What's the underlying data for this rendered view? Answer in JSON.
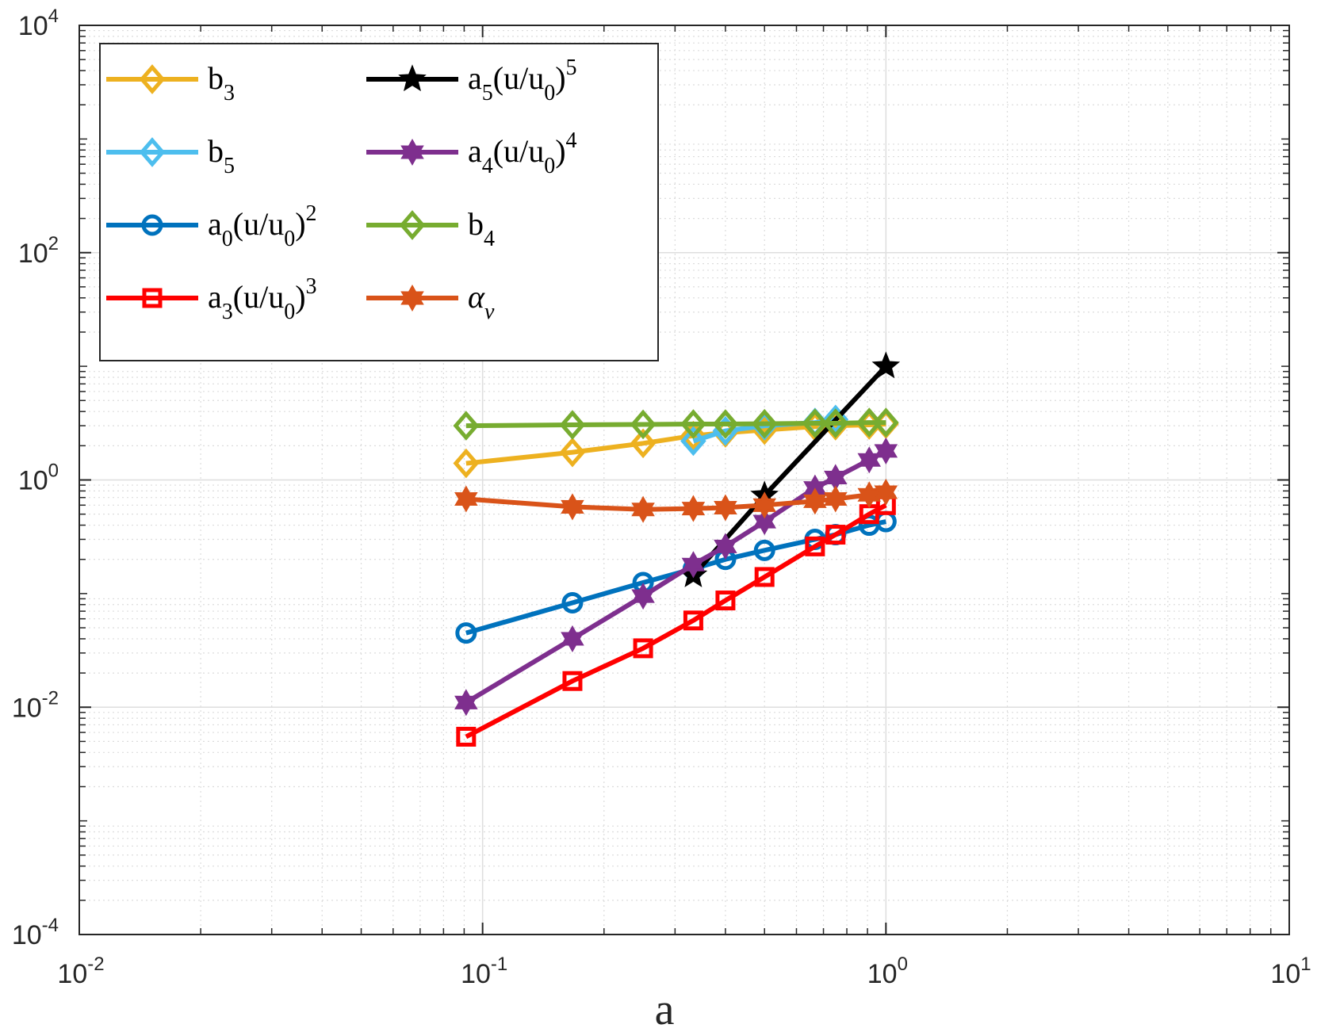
{
  "chart_data": {
    "type": "line",
    "xlabel": "a",
    "ylabel": "",
    "xscale": "log",
    "yscale": "log",
    "xlim": [
      0.01,
      10
    ],
    "ylim": [
      0.0001,
      10000
    ],
    "xticks": [
      {
        "base": "10",
        "exp": "-2"
      },
      {
        "base": "10",
        "exp": "-1"
      },
      {
        "base": "10",
        "exp": "0"
      },
      {
        "base": "10",
        "exp": "1"
      }
    ],
    "yticks": [
      {
        "base": "10",
        "exp": "-4"
      },
      {
        "base": "10",
        "exp": "-2"
      },
      {
        "base": "10",
        "exp": "0"
      },
      {
        "base": "10",
        "exp": "2"
      },
      {
        "base": "10",
        "exp": "4"
      }
    ],
    "grid": true,
    "minor_grid": true,
    "legend_position": "top-left",
    "series": [
      {
        "name": "b3",
        "label_main": "b",
        "label_sub": "3",
        "color": "#EDB120",
        "marker": "diamond",
        "x": [
          0.091,
          0.167,
          0.25,
          0.333,
          0.4,
          0.5,
          0.667,
          0.75,
          0.909,
          1.0
        ],
        "y": [
          1.4,
          1.75,
          2.1,
          2.45,
          2.6,
          2.75,
          2.95,
          3.0,
          3.05,
          3.1
        ]
      },
      {
        "name": "b5",
        "label_main": "b",
        "label_sub": "5",
        "color": "#4DBEEE",
        "marker": "diamond",
        "x": [
          0.333,
          0.4,
          0.5,
          0.667,
          0.75
        ],
        "y": [
          2.2,
          2.7,
          3.0,
          3.2,
          3.4
        ]
      },
      {
        "name": "a0(u/u0)^2",
        "label_main": "a",
        "label_sub": "0",
        "label_rest": "(u/u",
        "label_sub2": "0",
        "label_tail": ")",
        "label_sup": "2",
        "color": "#0072BD",
        "marker": "circle",
        "x": [
          0.091,
          0.167,
          0.25,
          0.333,
          0.4,
          0.5,
          0.667,
          0.75,
          0.909,
          1.0
        ],
        "y": [
          0.045,
          0.083,
          0.125,
          0.165,
          0.2,
          0.24,
          0.3,
          0.33,
          0.4,
          0.43
        ]
      },
      {
        "name": "a3(u/u0)^3",
        "label_main": "a",
        "label_sub": "3",
        "label_rest": "(u/u",
        "label_sub2": "0",
        "label_tail": ")",
        "label_sup": "3",
        "color": "#FF0000",
        "marker": "square",
        "x": [
          0.091,
          0.167,
          0.25,
          0.333,
          0.4,
          0.5,
          0.667,
          0.75,
          0.909,
          1.0
        ],
        "y": [
          0.0055,
          0.017,
          0.033,
          0.058,
          0.087,
          0.14,
          0.26,
          0.33,
          0.5,
          0.6
        ]
      },
      {
        "name": "a5(u/u0)^5",
        "label_main": "a",
        "label_sub": "5",
        "label_rest": "(u/u",
        "label_sub2": "0",
        "label_tail": ")",
        "label_sup": "5",
        "color": "#000000",
        "marker": "star",
        "x": [
          0.333,
          0.5,
          1.0
        ],
        "y": [
          0.145,
          0.73,
          10.0
        ]
      },
      {
        "name": "a4(u/u0)^4",
        "label_main": "a",
        "label_sub": "4",
        "label_rest": "(u/u",
        "label_sub2": "0",
        "label_tail": ")",
        "label_sup": "4",
        "color": "#7E2F8E",
        "marker": "hexagram",
        "x": [
          0.091,
          0.167,
          0.25,
          0.333,
          0.4,
          0.5,
          0.667,
          0.75,
          0.909,
          1.0
        ],
        "y": [
          0.011,
          0.04,
          0.095,
          0.18,
          0.26,
          0.43,
          0.85,
          1.05,
          1.5,
          1.8
        ]
      },
      {
        "name": "b4",
        "label_main": "b",
        "label_sub": "4",
        "color": "#77AC30",
        "marker": "diamond",
        "x": [
          0.091,
          0.167,
          0.25,
          0.333,
          0.4,
          0.5,
          0.667,
          0.75,
          0.909,
          1.0
        ],
        "y": [
          3.0,
          3.05,
          3.08,
          3.1,
          3.1,
          3.12,
          3.15,
          3.15,
          3.2,
          3.2
        ]
      },
      {
        "name": "alpha_nu",
        "label_main": "α",
        "label_sub": "ν",
        "color": "#D95319",
        "marker": "hexagram",
        "x": [
          0.091,
          0.167,
          0.25,
          0.333,
          0.4,
          0.5,
          0.667,
          0.75,
          0.909,
          1.0
        ],
        "y": [
          0.68,
          0.58,
          0.55,
          0.56,
          0.57,
          0.6,
          0.65,
          0.68,
          0.74,
          0.78
        ]
      }
    ]
  }
}
